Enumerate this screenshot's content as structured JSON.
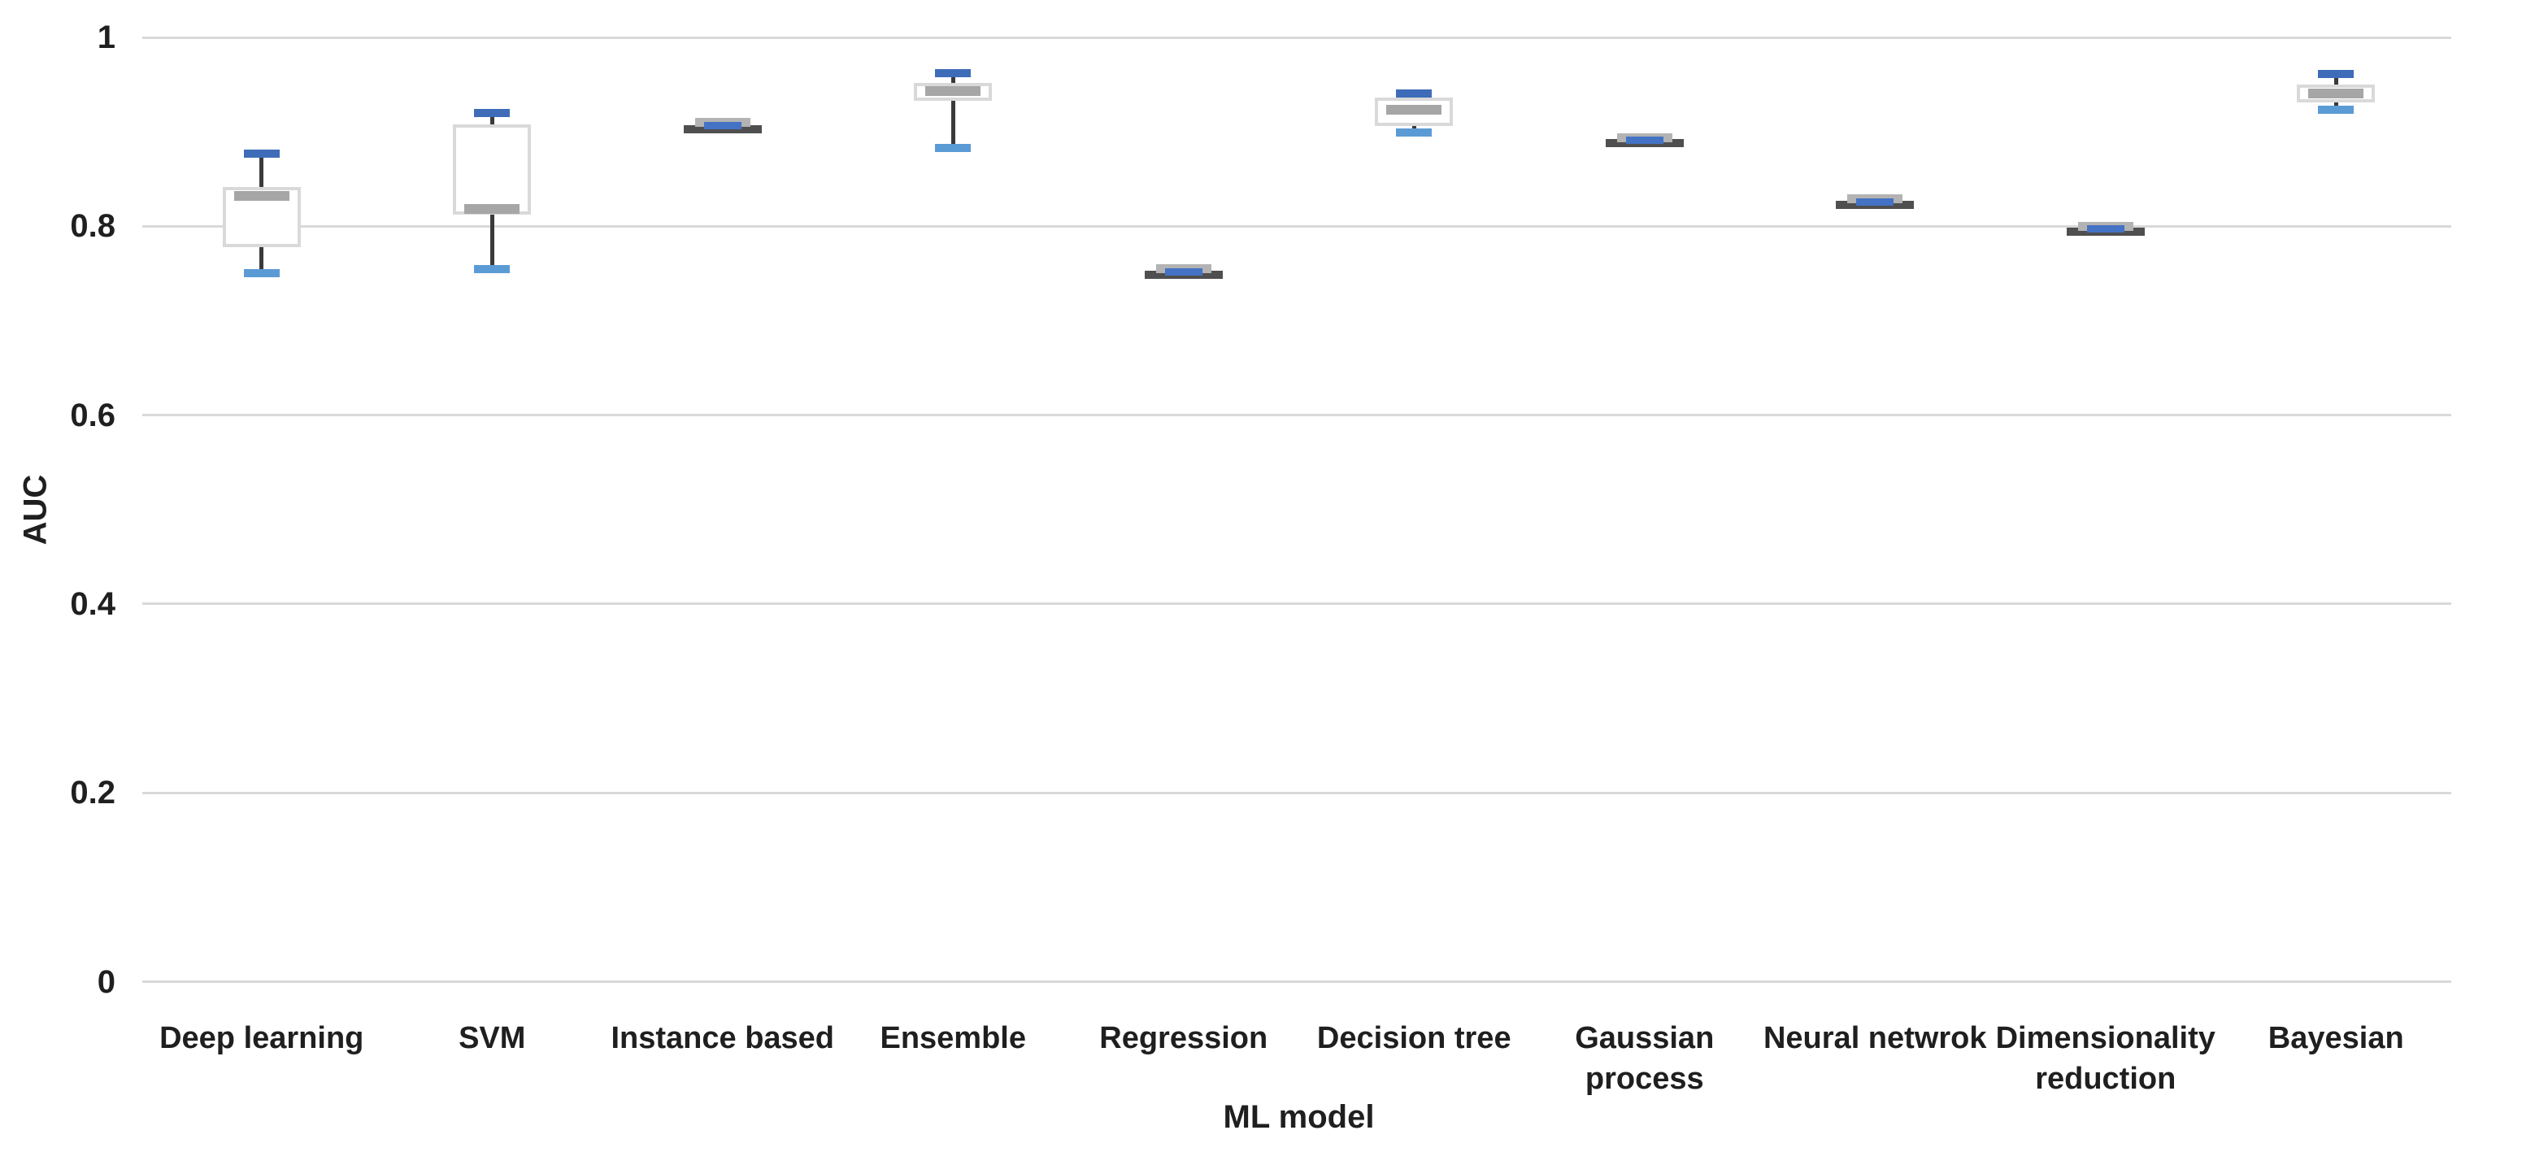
{
  "chart_data": {
    "type": "boxplot",
    "title": "",
    "xlabel": "ML model",
    "ylabel": "AUC",
    "ylim": [
      0,
      1
    ],
    "yticks": [
      0,
      0.2,
      0.4,
      0.6,
      0.8,
      1
    ],
    "ytick_labels": [
      "0",
      "0.2",
      "0.4",
      "0.6",
      "0.8",
      "1"
    ],
    "grid": true,
    "legend": "none",
    "categories": [
      "Deep learning",
      "SVM",
      "Instance based",
      "Ensemble",
      "Regression",
      "Decision tree",
      "Gaussian process",
      "Neural netwrok",
      "Dimensionality reduction",
      "Bayesian"
    ],
    "series": [
      {
        "name": "Deep learning",
        "min": 0.75,
        "q1": 0.778,
        "median": 0.832,
        "q3": 0.842,
        "max": 0.877,
        "compact": false
      },
      {
        "name": "SVM",
        "min": 0.755,
        "q1": 0.812,
        "median": 0.818,
        "q3": 0.908,
        "max": 0.92,
        "compact": false
      },
      {
        "name": "Instance based",
        "min": 0.9,
        "q1": 0.904,
        "median": 0.907,
        "q3": 0.91,
        "max": 0.913,
        "compact": true
      },
      {
        "name": "Ensemble",
        "min": 0.883,
        "q1": 0.933,
        "median": 0.943,
        "q3": 0.952,
        "max": 0.962,
        "compact": false
      },
      {
        "name": "Regression",
        "min": 0.746,
        "q1": 0.749,
        "median": 0.752,
        "q3": 0.755,
        "max": 0.758,
        "compact": true
      },
      {
        "name": "Decision tree",
        "min": 0.899,
        "q1": 0.906,
        "median": 0.923,
        "q3": 0.936,
        "max": 0.941,
        "compact": false
      },
      {
        "name": "Gaussian process",
        "min": 0.885,
        "q1": 0.888,
        "median": 0.891,
        "q3": 0.894,
        "max": 0.897,
        "compact": true
      },
      {
        "name": "Neural netwrok",
        "min": 0.82,
        "q1": 0.823,
        "median": 0.826,
        "q3": 0.829,
        "max": 0.832,
        "compact": true
      },
      {
        "name": "Dimensionality reduction",
        "min": 0.791,
        "q1": 0.794,
        "median": 0.797,
        "q3": 0.8,
        "max": 0.803,
        "compact": true
      },
      {
        "name": "Bayesian",
        "min": 0.923,
        "q1": 0.931,
        "median": 0.941,
        "q3": 0.95,
        "max": 0.961,
        "compact": false
      }
    ]
  },
  "colors": {
    "top_cap_blue": "#3E6CB8",
    "bottom_cap_blue": "#5B9BD5",
    "compact_blue": "#4472C4",
    "median_gray": "#A6A6A6",
    "compact_top_gray": "#B3B3B3",
    "compact_dark_bar": "#4F4F4F",
    "box_border_gray": "#D9D9D9",
    "whisker_dark": "#3A3A3A",
    "gridline_gray": "#D9D9D9",
    "text_dark": "#1F1F1F",
    "background": "#FFFFFF"
  }
}
